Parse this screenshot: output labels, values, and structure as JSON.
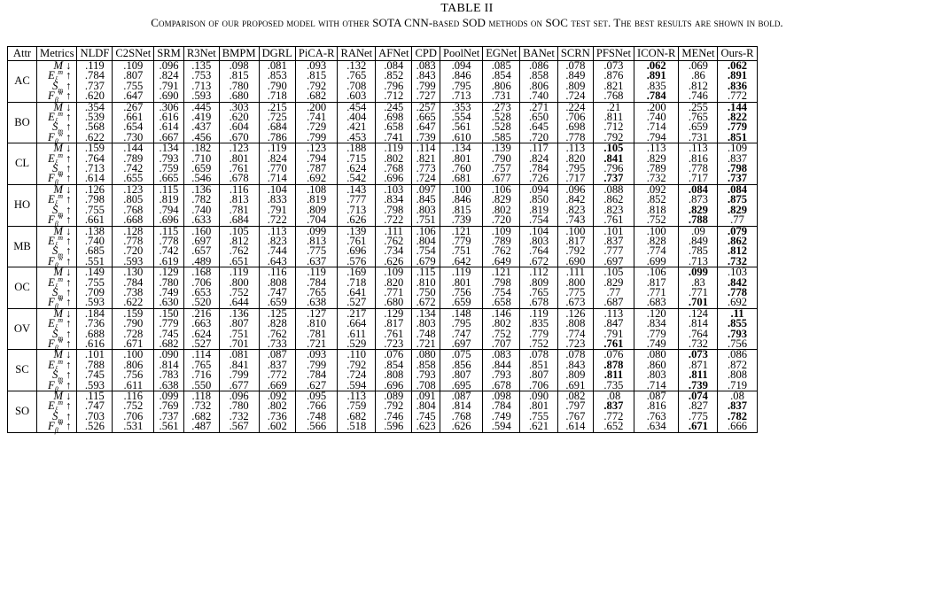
{
  "caption": {
    "label": "TABLE II",
    "text": "Comparison of our proposed model with other SOTA CNN-based SOD methods on SOC test set. The best results are shown in bold."
  },
  "headers": [
    "Attr",
    "Metrics",
    "NLDF",
    "C2SNet",
    "SRM",
    "R3Net",
    "BMPM",
    "DGRL",
    "PiCA-R",
    "RANet",
    "AFNet",
    "CPD",
    "PoolNet",
    "EGNet",
    "BANet",
    "SCRN",
    "PFSNet",
    "ICON-R",
    "MENet",
    "Ours-R"
  ],
  "metric_labels": [
    "M ↓",
    "Eξm ↑",
    "Sm ↑",
    "Fβw ↑"
  ],
  "groups": [
    {
      "attr": "AC",
      "rows": [
        [
          ".119",
          ".109",
          ".096",
          ".135",
          ".098",
          ".081",
          ".093",
          ".132",
          ".084",
          ".083",
          ".094",
          ".085",
          ".086",
          ".078",
          ".073",
          "*.062",
          ".069",
          "*.062"
        ],
        [
          ".784",
          ".807",
          ".824",
          ".753",
          ".815",
          ".853",
          ".815",
          ".765",
          ".852",
          ".843",
          ".846",
          ".854",
          ".858",
          ".849",
          ".876",
          "*.891",
          ".86",
          "*.891"
        ],
        [
          ".737",
          ".755",
          ".791",
          ".713",
          ".780",
          ".790",
          ".792",
          ".708",
          ".796",
          ".799",
          ".795",
          ".806",
          ".806",
          ".809",
          ".821",
          ".835",
          ".812",
          "*.836"
        ],
        [
          ".620",
          ".647",
          ".690",
          ".593",
          ".680",
          ".718",
          ".682",
          ".603",
          ".712",
          ".727",
          ".713",
          ".731",
          ".740",
          ".724",
          ".768",
          "*.784",
          ".746",
          ".772"
        ]
      ]
    },
    {
      "attr": "BO",
      "rows": [
        [
          ".354",
          ".267",
          ".306",
          ".445",
          ".303",
          ".215",
          ".200",
          ".454",
          ".245",
          ".257",
          ".353",
          ".273",
          ".271",
          ".224",
          ".21",
          ".200",
          ".255",
          "*.144"
        ],
        [
          ".539",
          ".661",
          ".616",
          ".419",
          ".620",
          ".725",
          ".741",
          ".404",
          ".698",
          ".665",
          ".554",
          ".528",
          ".650",
          ".706",
          ".811",
          ".740",
          ".765",
          "*.822"
        ],
        [
          ".568",
          ".654",
          ".614",
          ".437",
          ".604",
          ".684",
          ".729",
          ".421",
          ".658",
          ".647",
          ".561",
          ".528",
          ".645",
          ".698",
          ".712",
          ".714",
          ".659",
          "*.779"
        ],
        [
          ".622",
          ".730",
          ".667",
          ".456",
          ".670",
          ".786",
          ".799",
          ".453",
          ".741",
          ".739",
          ".610",
          ".585",
          ".720",
          ".778",
          ".792",
          ".794",
          ".731",
          "*.851"
        ]
      ]
    },
    {
      "attr": "CL",
      "rows": [
        [
          ".159",
          ".144",
          ".134",
          ".182",
          ".123",
          ".119",
          ".123",
          ".188",
          ".119",
          ".114",
          ".134",
          ".139",
          ".117",
          ".113",
          "*.105",
          ".113",
          ".113",
          ".109"
        ],
        [
          ".764",
          ".789",
          ".793",
          ".710",
          ".801",
          ".824",
          ".794",
          ".715",
          ".802",
          ".821",
          ".801",
          ".790",
          ".824",
          ".820",
          "*.841",
          ".829",
          ".816",
          ".837"
        ],
        [
          ".713",
          ".742",
          ".759",
          ".659",
          ".761",
          ".770",
          ".787",
          ".624",
          ".768",
          ".773",
          ".760",
          ".757",
          ".784",
          ".795",
          ".796",
          ".789",
          ".778",
          "*.798"
        ],
        [
          ".614",
          ".655",
          ".665",
          ".546",
          ".678",
          ".714",
          ".692",
          ".542",
          ".696",
          ".724",
          ".681",
          ".677",
          ".726",
          ".717",
          "*.737",
          ".732",
          ".717",
          "*.737"
        ]
      ]
    },
    {
      "attr": "HO",
      "rows": [
        [
          ".126",
          ".123",
          ".115",
          ".136",
          ".116",
          ".104",
          ".108",
          ".143",
          ".103",
          ".097",
          ".100",
          ".106",
          ".094",
          ".096",
          ".088",
          ".092",
          "*.084",
          "*.084"
        ],
        [
          ".798",
          ".805",
          ".819",
          ".782",
          ".813",
          ".833",
          ".819",
          ".777",
          ".834",
          ".845",
          ".846",
          ".829",
          ".850",
          ".842",
          ".862",
          ".852",
          ".873",
          "*.875"
        ],
        [
          ".755",
          ".768",
          ".794",
          ".740",
          ".781",
          ".791",
          ".809",
          ".713",
          ".798",
          ".803",
          ".815",
          ".802",
          ".819",
          ".823",
          ".823",
          ".818",
          "*.829",
          "*.829"
        ],
        [
          ".661",
          ".668",
          ".696",
          ".633",
          ".684",
          ".722",
          ".704",
          ".626",
          ".722",
          ".751",
          ".739",
          ".720",
          ".754",
          ".743",
          ".761",
          ".752",
          "*.788",
          ".77"
        ]
      ]
    },
    {
      "attr": "MB",
      "rows": [
        [
          ".138",
          ".128",
          ".115",
          ".160",
          ".105",
          ".113",
          ".099",
          ".139",
          ".111",
          ".106",
          ".121",
          ".109",
          ".104",
          ".100",
          ".101",
          ".100",
          ".09",
          "*.079"
        ],
        [
          ".740",
          ".778",
          ".778",
          ".697",
          ".812",
          ".823",
          ".813",
          ".761",
          ".762",
          ".804",
          ".779",
          ".789",
          ".803",
          ".817",
          ".837",
          ".828",
          ".849",
          "*.862"
        ],
        [
          ".685",
          ".720",
          ".742",
          ".657",
          ".762",
          ".744",
          ".775",
          ".696",
          ".734",
          ".754",
          ".751",
          ".762",
          ".764",
          ".792",
          ".777",
          ".774",
          ".785",
          "*.812"
        ],
        [
          ".551",
          ".593",
          ".619",
          ".489",
          ".651",
          ".643",
          ".637",
          ".576",
          ".626",
          ".679",
          ".642",
          ".649",
          ".672",
          ".690",
          ".697",
          ".699",
          ".713",
          "*.732"
        ]
      ]
    },
    {
      "attr": "OC",
      "rows": [
        [
          ".149",
          ".130",
          ".129",
          ".168",
          ".119",
          ".116",
          ".119",
          ".169",
          ".109",
          ".115",
          ".119",
          ".121",
          ".112",
          ".111",
          ".105",
          ".106",
          "*.099",
          ".103"
        ],
        [
          ".755",
          ".784",
          ".780",
          ".706",
          ".800",
          ".808",
          ".784",
          ".718",
          ".820",
          ".810",
          ".801",
          ".798",
          ".809",
          ".800",
          ".829",
          ".817",
          ".83",
          "*.842"
        ],
        [
          ".709",
          ".738",
          ".749",
          ".653",
          ".752",
          ".747",
          ".765",
          ".641",
          ".771",
          ".750",
          ".756",
          ".754",
          ".765",
          ".775",
          ".77",
          ".771",
          ".771",
          "*.778"
        ],
        [
          ".593",
          ".622",
          ".630",
          ".520",
          ".644",
          ".659",
          ".638",
          ".527",
          ".680",
          ".672",
          ".659",
          ".658",
          ".678",
          ".673",
          ".687",
          ".683",
          "*.701",
          ".692"
        ]
      ]
    },
    {
      "attr": "OV",
      "rows": [
        [
          ".184",
          ".159",
          ".150",
          ".216",
          ".136",
          ".125",
          ".127",
          ".217",
          ".129",
          ".134",
          ".148",
          ".146",
          ".119",
          ".126",
          ".113",
          ".120",
          ".124",
          "*.11"
        ],
        [
          ".736",
          ".790",
          ".779",
          ".663",
          ".807",
          ".828",
          ".810",
          ".664",
          ".817",
          ".803",
          ".795",
          ".802",
          ".835",
          ".808",
          ".847",
          ".834",
          ".814",
          "*.855"
        ],
        [
          ".688",
          ".728",
          ".745",
          ".624",
          ".751",
          ".762",
          ".781",
          ".611",
          ".761",
          ".748",
          ".747",
          ".752",
          ".779",
          ".774",
          ".791",
          ".779",
          ".764",
          "*.793"
        ],
        [
          ".616",
          ".671",
          ".682",
          ".527",
          ".701",
          ".733",
          ".721",
          ".529",
          ".723",
          ".721",
          ".697",
          ".707",
          ".752",
          ".723",
          "*.761",
          ".749",
          ".732",
          ".756"
        ]
      ]
    },
    {
      "attr": "SC",
      "rows": [
        [
          ".101",
          ".100",
          ".090",
          ".114",
          ".081",
          ".087",
          ".093",
          ".110",
          ".076",
          ".080",
          ".075",
          ".083",
          ".078",
          ".078",
          ".076",
          ".080",
          "*.073",
          ".086"
        ],
        [
          ".788",
          ".806",
          ".814",
          ".765",
          ".841",
          ".837",
          ".799",
          ".792",
          ".854",
          ".858",
          ".856",
          ".844",
          ".851",
          ".843",
          "*.878",
          ".860",
          ".871",
          ".872"
        ],
        [
          ".745",
          ".756",
          ".783",
          ".716",
          ".799",
          ".772",
          ".784",
          ".724",
          ".808",
          ".793",
          ".807",
          ".793",
          ".807",
          ".809",
          "*.811",
          ".803",
          "*.811",
          ".808"
        ],
        [
          ".593",
          ".611",
          ".638",
          ".550",
          ".677",
          ".669",
          ".627",
          ".594",
          ".696",
          ".708",
          ".695",
          ".678",
          ".706",
          ".691",
          ".735",
          ".714",
          "*.739",
          ".719"
        ]
      ]
    },
    {
      "attr": "SO",
      "rows": [
        [
          ".115",
          ".116",
          ".099",
          ".118",
          ".096",
          ".092",
          ".095",
          ".113",
          ".089",
          ".091",
          ".087",
          ".098",
          ".090",
          ".082",
          ".08",
          ".087",
          "*.074",
          ".08"
        ],
        [
          ".747",
          ".752",
          ".769",
          ".732",
          ".780",
          ".802",
          ".766",
          ".759",
          ".792",
          ".804",
          ".814",
          ".784",
          ".801",
          ".797",
          "*.837",
          ".816",
          ".827",
          "*.837"
        ],
        [
          ".703",
          ".706",
          ".737",
          ".682",
          ".732",
          ".736",
          ".748",
          ".682",
          ".746",
          ".745",
          ".768",
          ".749",
          ".755",
          ".767",
          ".772",
          ".763",
          ".775",
          "*.782"
        ],
        [
          ".526",
          ".531",
          ".561",
          ".487",
          ".567",
          ".602",
          ".566",
          ".518",
          ".596",
          ".623",
          ".626",
          ".594",
          ".621",
          ".614",
          ".652",
          ".634",
          "*.671",
          ".666"
        ]
      ]
    }
  ]
}
